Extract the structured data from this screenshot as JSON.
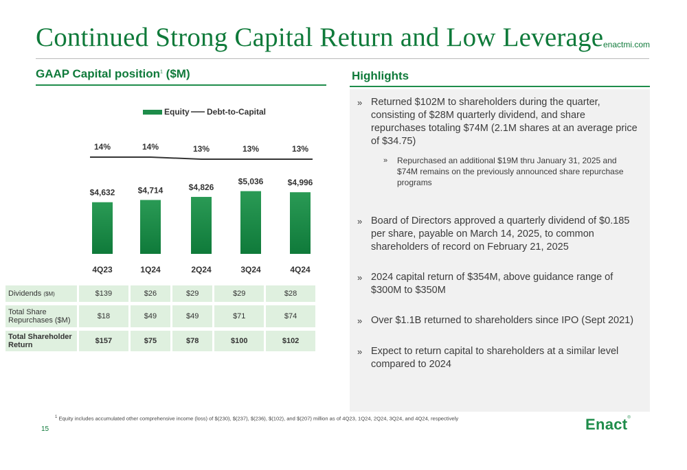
{
  "title": "Continued Strong Capital Return and Low Leverage",
  "site": "enactmi.com",
  "left_heading": {
    "text": "GAAP Capital position",
    "sup": "1",
    "suffix": " ($M)"
  },
  "right_heading": "Highlights",
  "chart_data": {
    "type": "bar",
    "categories": [
      "4Q23",
      "1Q24",
      "2Q24",
      "3Q24",
      "4Q24"
    ],
    "series": [
      {
        "name": "Equity",
        "type": "bar",
        "values": [
          4632,
          4714,
          4826,
          5036,
          4996
        ],
        "labels": [
          "$4,632",
          "$4,714",
          "$4,826",
          "$5,036",
          "$4,996"
        ],
        "color": "#1e8c4a"
      },
      {
        "name": "Debt-to-Capital",
        "type": "line",
        "values": [
          14,
          14,
          13,
          13,
          13
        ],
        "labels": [
          "14%",
          "14%",
          "13%",
          "13%",
          "13%"
        ],
        "color": "#333333"
      }
    ],
    "legend": "top",
    "grid": false
  },
  "table": {
    "rows": [
      {
        "label": "Dividends ",
        "label_small": "($M)",
        "values": [
          "$139",
          "$26",
          "$29",
          "$29",
          "$28"
        ]
      },
      {
        "label": "Total Share Repurchases ($M)",
        "label_small": "",
        "values": [
          "$18",
          "$49",
          "$49",
          "$71",
          "$74"
        ]
      },
      {
        "label": "Total Shareholder Return",
        "label_small": "",
        "values": [
          "$157",
          "$75",
          "$78",
          "$100",
          "$102"
        ]
      }
    ]
  },
  "highlights": {
    "marker": "»",
    "b1": "Returned $102M to shareholders during the quarter, consisting of $28M quarterly dividend, and share repurchases totaling $74M (2.1M shares at an average price of $34.75)",
    "b1_sub": "Repurchased an additional $19M thru January 31, 2025 and $74M remains on the previously announced share repurchase programs",
    "b2": "Board of Directors approved a quarterly dividend of $0.185 per share, payable on March 14, 2025, to common shareholders of record on February 21, 2025",
    "b3": "2024 capital return of $354M, above guidance range of $300M to $350M",
    "b4": "Over $1.1B returned to shareholders since IPO (Sept 2021)",
    "b5": "Expect to return capital to shareholders at a similar level compared to 2024"
  },
  "footnote": {
    "sup": "1",
    "text": " Equity includes accumulated other comprehensive income (loss) of $(230), $(237), $(236), $(102), and $(207) million as of 4Q23, 1Q24, 2Q24, 3Q24, and 4Q24, respectively"
  },
  "page_number": "15",
  "logo": {
    "text": "Enact",
    "mark": "®"
  }
}
